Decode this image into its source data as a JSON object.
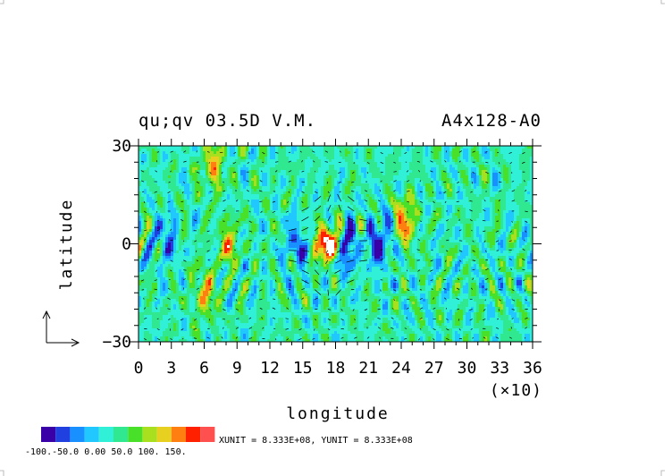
{
  "chart_data": {
    "type": "heatmap",
    "title_left": "qu;qv 03.5D V.M.",
    "title_right": "A4x128-A0",
    "xlabel": "longitude",
    "ylabel": "latitude",
    "x_multiplier": "(×10)",
    "xlim": [
      0,
      36
    ],
    "ylim": [
      -30,
      30
    ],
    "x_ticks": [
      "0",
      "3",
      "6",
      "9",
      "12",
      "15",
      "18",
      "21",
      "24",
      "27",
      "30",
      "33",
      "36"
    ],
    "y_ticks": [
      "30",
      "0",
      "−30"
    ],
    "colorbar": {
      "levels": [
        -100,
        -75,
        -50,
        -25,
        0,
        25,
        50,
        75,
        100,
        125,
        150
      ],
      "tick_labels": "-100.-50.0 0.00 50.0 100. 150.",
      "colors": [
        "#3a00a8",
        "#2040e0",
        "#1890ff",
        "#20c8ff",
        "#30f0d8",
        "#30e890",
        "#48e028",
        "#a8e020",
        "#e8d020",
        "#ff8010",
        "#ff2000",
        "#ff5050"
      ]
    },
    "units_text": "XUNIT = 8.333E+08, YUNIT = 8.333E+08",
    "background_color": "#30e8d8",
    "features": [
      {
        "type": "hot",
        "x": 17.4,
        "y": 0,
        "value": 160
      },
      {
        "type": "low",
        "x": 19.0,
        "y": -1,
        "value": -110
      },
      {
        "type": "low",
        "x": 22.0,
        "y": 0,
        "value": -95
      },
      {
        "type": "low",
        "x": 14.5,
        "y": 0,
        "value": -70
      },
      {
        "type": "low",
        "x": 2.5,
        "y": 1,
        "value": -60
      },
      {
        "type": "high",
        "x": 6.8,
        "y": 24,
        "value": 80
      },
      {
        "type": "high",
        "x": 24.4,
        "y": 7,
        "value": 90
      },
      {
        "type": "high",
        "x": 8.2,
        "y": 0,
        "value": 70
      },
      {
        "type": "high",
        "x": 6.1,
        "y": -15,
        "value": 75
      }
    ]
  }
}
